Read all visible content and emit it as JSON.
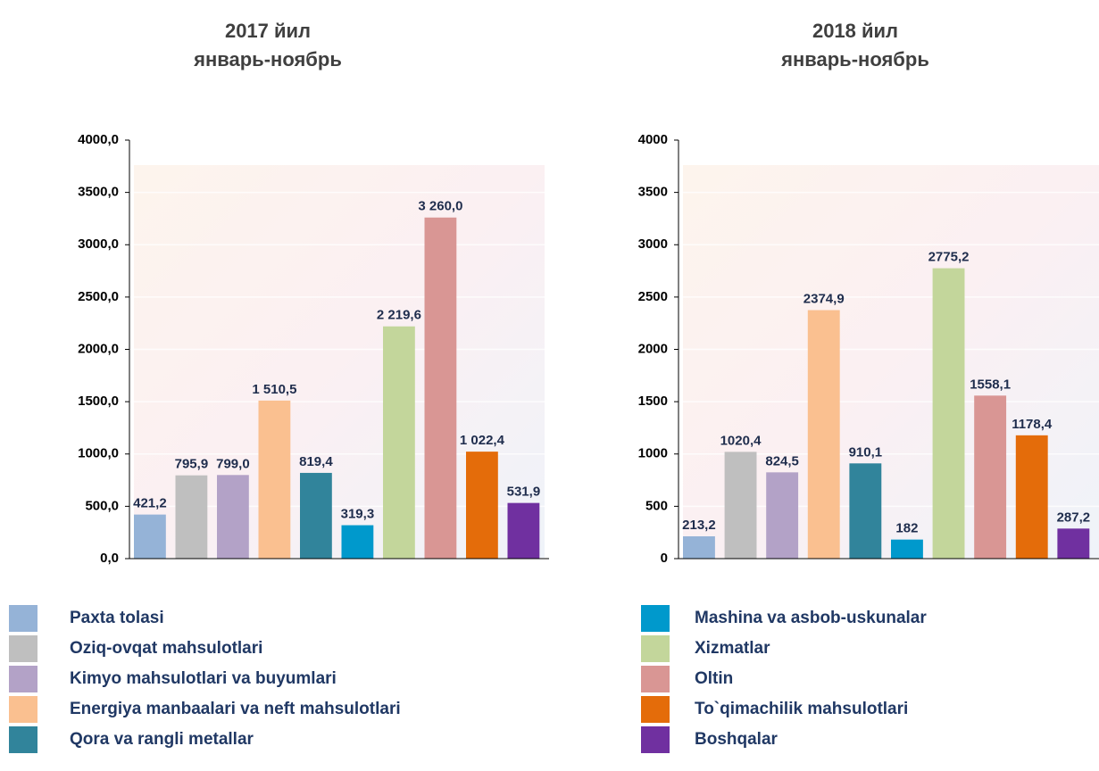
{
  "chart_data": [
    {
      "type": "bar",
      "title": [
        "2017 йил",
        "январь-ноябрь"
      ],
      "values": [
        421.2,
        795.9,
        799.0,
        1510.5,
        819.4,
        319.3,
        2219.6,
        3260.0,
        1022.4,
        531.9
      ],
      "value_labels": [
        "421,2",
        "795,9",
        "799,0",
        "1 510,5",
        "819,4",
        "319,3",
        "2 219,6",
        "3 260,0",
        "1 022,4",
        "531,9"
      ],
      "ylim": [
        0,
        4000
      ],
      "yticks": [
        {
          "value": 0,
          "label": "0,0"
        },
        {
          "value": 500,
          "label": "500,0"
        },
        {
          "value": 1000,
          "label": "1000,0"
        },
        {
          "value": 1500,
          "label": "1500,0"
        },
        {
          "value": 2000,
          "label": "2000,0"
        },
        {
          "value": 2500,
          "label": "2500,0"
        },
        {
          "value": 3000,
          "label": "3000,0"
        },
        {
          "value": 3500,
          "label": "3500,0"
        },
        {
          "value": 4000,
          "label": "4000,0"
        }
      ]
    },
    {
      "type": "bar",
      "title": [
        "2018 йил",
        "январь-ноябрь"
      ],
      "values": [
        213.2,
        1020.4,
        824.5,
        2374.9,
        910.1,
        182,
        2775.2,
        1558.1,
        1178.4,
        287.2
      ],
      "value_labels": [
        "213,2",
        "1020,4",
        "824,5",
        "2374,9",
        "910,1",
        "182",
        "2775,2",
        "1558,1",
        "1178,4",
        "287,2"
      ],
      "ylim": [
        0,
        4000
      ],
      "yticks": [
        0,
        500,
        1000,
        1500,
        2000,
        2500,
        3000,
        3500,
        4000
      ]
    }
  ],
  "legend": [
    {
      "name": "Paxta tolasi",
      "color": "#95b3d7"
    },
    {
      "name": "Oziq-ovqat mahsulotlari",
      "color": "#bfbfbf"
    },
    {
      "name": "Kimyo mahsulotlari va buyumlari",
      "color": "#b3a2c7"
    },
    {
      "name": "Energiya  manbaalari va neft mahsulotlari",
      "color": "#fac090"
    },
    {
      "name": "Qora va rangli metallar",
      "color": "#31849b"
    },
    {
      "name": "Mashina va asbob-uskunalar",
      "color": "#0099cc"
    },
    {
      "name": "Xizmatlar",
      "color": "#c3d69b"
    },
    {
      "name": "Oltin",
      "color": "#d99694"
    },
    {
      "name": "To`qimachilik mahsulotlari",
      "color": "#e46c0a"
    },
    {
      "name": "Boshqalar",
      "color": "#7030a0"
    }
  ]
}
